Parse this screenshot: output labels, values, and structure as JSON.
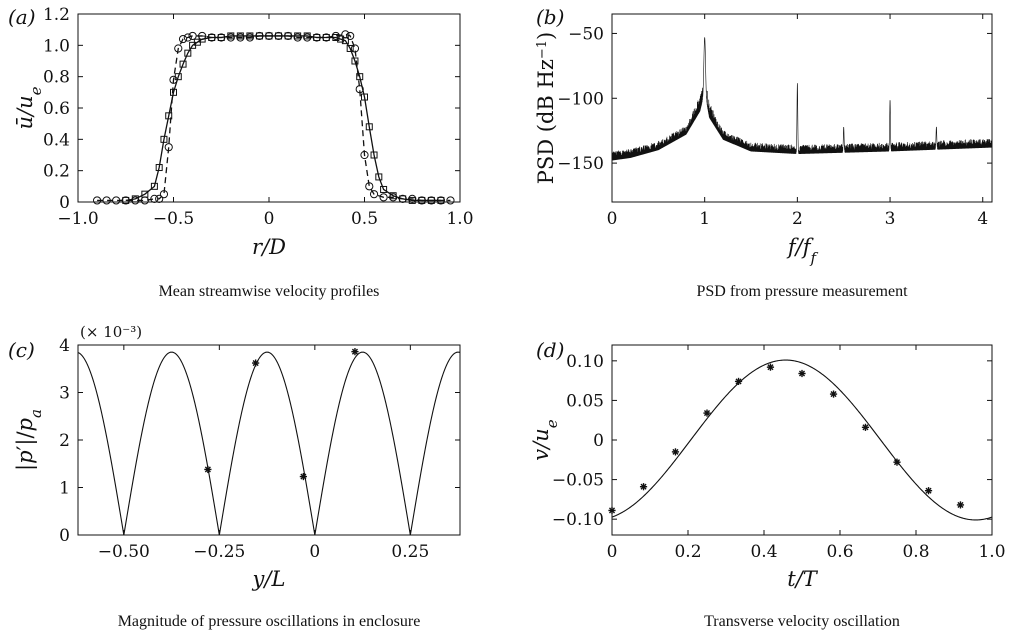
{
  "chart_data": [
    {
      "panel": "(a)",
      "type": "line",
      "caption": "Mean streamwise velocity profiles",
      "xlabel": "r/D",
      "ylabel": "ū/u_e",
      "xlim": [
        -1.0,
        1.0
      ],
      "ylim": [
        0,
        1.2
      ],
      "xticks": [
        -1.0,
        -0.5,
        0,
        0.5,
        1.0
      ],
      "xtick_labels": [
        "−1.0",
        "−0.5",
        "0",
        "0.5",
        "1.0"
      ],
      "yticks": [
        0,
        0.2,
        0.4,
        0.6,
        0.8,
        1.0,
        1.2
      ],
      "ytick_labels": [
        "0",
        "0.2",
        "0.4",
        "0.6",
        "0.8",
        "1.0",
        "1.2"
      ],
      "series": [
        {
          "style": "solid",
          "marker": "square",
          "x": [
            -0.75,
            -0.7,
            -0.65,
            -0.6,
            -0.575,
            -0.55,
            -0.525,
            -0.5,
            -0.475,
            -0.45,
            -0.425,
            -0.4,
            -0.375,
            -0.35,
            -0.3,
            -0.25,
            -0.2,
            -0.15,
            -0.1,
            -0.05,
            0,
            0.05,
            0.1,
            0.15,
            0.2,
            0.25,
            0.3,
            0.35,
            0.375,
            0.4,
            0.425,
            0.45,
            0.475,
            0.5,
            0.525,
            0.55,
            0.575,
            0.6,
            0.65,
            0.7,
            0.75,
            0.8,
            0.85,
            0.9
          ],
          "y": [
            0.01,
            0.02,
            0.05,
            0.1,
            0.22,
            0.4,
            0.55,
            0.7,
            0.8,
            0.88,
            0.95,
            1.0,
            1.02,
            1.04,
            1.05,
            1.05,
            1.06,
            1.06,
            1.06,
            1.06,
            1.06,
            1.06,
            1.06,
            1.06,
            1.06,
            1.05,
            1.05,
            1.05,
            1.04,
            1.03,
            0.98,
            0.9,
            0.8,
            0.67,
            0.48,
            0.3,
            0.16,
            0.08,
            0.04,
            0.02,
            0.01,
            0.01,
            0.01,
            0.01
          ]
        },
        {
          "style": "dashed",
          "marker": "circle",
          "x": [
            -0.9,
            -0.85,
            -0.8,
            -0.75,
            -0.7,
            -0.65,
            -0.6,
            -0.575,
            -0.55,
            -0.525,
            -0.5,
            -0.475,
            -0.45,
            -0.425,
            -0.4,
            -0.35,
            -0.3,
            -0.25,
            -0.2,
            -0.15,
            -0.1,
            -0.05,
            0,
            0.05,
            0.1,
            0.15,
            0.2,
            0.25,
            0.3,
            0.35,
            0.4,
            0.425,
            0.45,
            0.475,
            0.5,
            0.525,
            0.55,
            0.6,
            0.65,
            0.7,
            0.75,
            0.8,
            0.85,
            0.9,
            0.95
          ],
          "y": [
            0.01,
            0.01,
            0.01,
            0.01,
            0.01,
            0.01,
            0.02,
            0.02,
            0.05,
            0.35,
            0.78,
            0.98,
            1.04,
            1.05,
            1.06,
            1.06,
            1.05,
            1.05,
            1.05,
            1.05,
            1.05,
            1.06,
            1.06,
            1.06,
            1.06,
            1.05,
            1.05,
            1.05,
            1.05,
            1.06,
            1.07,
            1.06,
            0.98,
            0.72,
            0.3,
            0.1,
            0.05,
            0.03,
            0.03,
            0.02,
            0.02,
            0.01,
            0.01,
            0.01,
            0.01
          ]
        }
      ]
    },
    {
      "panel": "(b)",
      "type": "line",
      "caption": "PSD from pressure measurement",
      "xlabel": "f/f_f",
      "ylabel": "PSD (dB Hz⁻¹)",
      "xlim": [
        0,
        4.1
      ],
      "ylim": [
        -180,
        -35
      ],
      "xticks": [
        0,
        1,
        2,
        3,
        4
      ],
      "xtick_labels": [
        "0",
        "1",
        "2",
        "3",
        "4"
      ],
      "yticks": [
        -150,
        -100,
        -50
      ],
      "ytick_labels": [
        "−150",
        "−100",
        "−50"
      ],
      "baseline_mean": [
        [
          0,
          -148
        ],
        [
          0.2,
          -146
        ],
        [
          0.5,
          -140
        ],
        [
          0.8,
          -128
        ],
        [
          0.95,
          -110
        ],
        [
          1.0,
          -95
        ],
        [
          1.05,
          -115
        ],
        [
          1.2,
          -132
        ],
        [
          1.5,
          -141
        ],
        [
          2.0,
          -143
        ],
        [
          3.0,
          -141
        ],
        [
          4.1,
          -138
        ]
      ],
      "peaks": [
        {
          "x": 1.0,
          "y": -53
        },
        {
          "x": 2.0,
          "y": -88
        },
        {
          "x": 2.5,
          "y": -122
        },
        {
          "x": 3.0,
          "y": -101
        },
        {
          "x": 3.5,
          "y": -122
        }
      ]
    },
    {
      "panel": "(c)",
      "type": "line",
      "caption": "Magnitude of pressure oscillations in enclosure",
      "xlabel": "y/L",
      "ylabel": "|p′|/p_a",
      "scale_note": "(× 10⁻³)",
      "xlim": [
        -0.62,
        0.38
      ],
      "ylim": [
        0,
        4
      ],
      "xticks": [
        -0.5,
        -0.25,
        0,
        0.25
      ],
      "xtick_labels": [
        "−0.50",
        "−0.25",
        "0",
        "0.25"
      ],
      "yticks": [
        0,
        1,
        2,
        3,
        4
      ],
      "ytick_labels": [
        "0",
        "1",
        "2",
        "3",
        "4"
      ],
      "curve": {
        "amplitude": 3.85,
        "zeros": [
          -0.5,
          -0.25,
          0.0,
          0.25
        ],
        "period": 0.25
      },
      "points": {
        "marker": "asterisk",
        "x": [
          -0.28,
          -0.155,
          -0.03,
          0.105
        ],
        "y": [
          1.38,
          3.62,
          1.23,
          3.86
        ]
      }
    },
    {
      "panel": "(d)",
      "type": "line",
      "caption": "Transverse velocity oscillation",
      "xlabel": "t/T",
      "ylabel": "v/u_e",
      "xlim": [
        0,
        1.0
      ],
      "ylim": [
        -0.12,
        0.12
      ],
      "xticks": [
        0,
        0.2,
        0.4,
        0.6,
        0.8,
        1.0
      ],
      "xtick_labels": [
        "0",
        "0.2",
        "0.4",
        "0.6",
        "0.8",
        "1.0"
      ],
      "yticks": [
        -0.1,
        -0.05,
        0,
        0.05,
        0.1
      ],
      "ytick_labels": [
        "−0.10",
        "−0.05",
        "0",
        "0.05",
        "0.10"
      ],
      "curve": {
        "amplitude": 0.101,
        "peak_t": 0.457
      },
      "points": {
        "marker": "asterisk",
        "x": [
          0,
          0.083,
          0.167,
          0.25,
          0.333,
          0.417,
          0.5,
          0.583,
          0.667,
          0.75,
          0.833,
          0.917
        ],
        "y": [
          -0.089,
          -0.059,
          -0.015,
          0.034,
          0.074,
          0.092,
          0.084,
          0.058,
          0.016,
          -0.028,
          -0.064,
          -0.082
        ]
      }
    }
  ]
}
